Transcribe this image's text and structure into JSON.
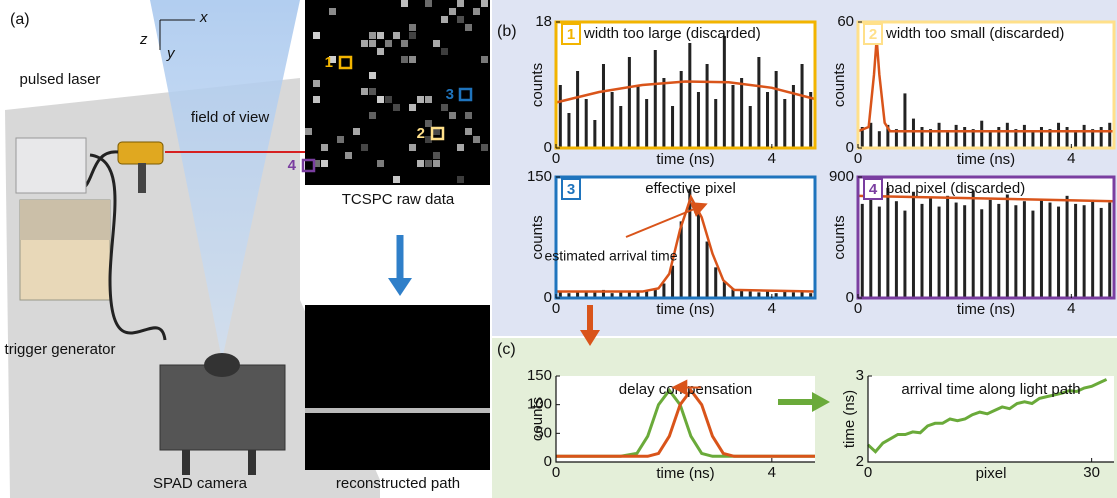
{
  "panel_a": {
    "label": "(a)",
    "axis_x": "x",
    "axis_y": "y",
    "axis_z": "z",
    "laser": "pulsed laser",
    "fov": "field of view",
    "trigger": "trigger generator",
    "camera": "SPAD camera",
    "raw": "TCSPC raw data",
    "path": "reconstructed path",
    "marker_1": "1",
    "marker_2": "2",
    "marker_3": "3",
    "marker_4": "4"
  },
  "panel_b_label": "(b)",
  "panel_c_label": "(c)",
  "chart_data": [
    {
      "type": "histogram",
      "badge": "1",
      "title": "width too large (discarded)",
      "frame_color": "#f2b400",
      "color": "#222222",
      "xlabel": "time (ns)",
      "ylabel": "counts",
      "xlim": [
        0,
        4.8
      ],
      "xticks": [
        0,
        4
      ],
      "ylim": [
        0,
        18
      ],
      "yticks": [
        0,
        18
      ],
      "x": [
        0.08,
        0.24,
        0.4,
        0.56,
        0.72,
        0.88,
        1.04,
        1.2,
        1.36,
        1.52,
        1.68,
        1.84,
        2.0,
        2.16,
        2.32,
        2.48,
        2.64,
        2.8,
        2.96,
        3.12,
        3.28,
        3.44,
        3.6,
        3.76,
        3.92,
        4.08,
        4.24,
        4.4,
        4.56,
        4.72
      ],
      "values": [
        9,
        5,
        11,
        7,
        4,
        12,
        8,
        6,
        13,
        9,
        7,
        14,
        10,
        6,
        11,
        15,
        8,
        12,
        7,
        16,
        9,
        10,
        6,
        13,
        8,
        11,
        7,
        9,
        12,
        8
      ],
      "fit": {
        "color": "#d9541a",
        "x": [
          0,
          0.8,
          1.6,
          2.4,
          3.2,
          4.0,
          4.8
        ],
        "values": [
          6.5,
          8.0,
          9.0,
          9.5,
          9.4,
          8.6,
          7.0
        ]
      }
    },
    {
      "type": "histogram",
      "badge": "2",
      "title": "width too small (discarded)",
      "frame_color": "#ffe08a",
      "color": "#222222",
      "xlabel": "time (ns)",
      "ylabel": "counts",
      "xlim": [
        0,
        4.8
      ],
      "xticks": [
        0,
        4
      ],
      "ylim": [
        0,
        60
      ],
      "yticks": [
        0,
        60
      ],
      "x": [
        0.08,
        0.24,
        0.4,
        0.56,
        0.72,
        0.88,
        1.04,
        1.2,
        1.36,
        1.52,
        1.68,
        1.84,
        2.0,
        2.16,
        2.32,
        2.48,
        2.64,
        2.8,
        2.96,
        3.12,
        3.28,
        3.44,
        3.6,
        3.76,
        3.92,
        4.08,
        4.24,
        4.4,
        4.56,
        4.72
      ],
      "values": [
        10,
        12,
        8,
        11,
        9,
        26,
        14,
        10,
        9,
        12,
        8,
        11,
        10,
        9,
        13,
        8,
        10,
        12,
        9,
        11,
        8,
        10,
        9,
        12,
        10,
        8,
        11,
        9,
        10,
        12
      ],
      "fit": {
        "color": "#d9541a",
        "x": [
          0,
          0.2,
          0.3,
          0.35,
          0.4,
          0.5,
          0.6,
          0.8,
          1.6,
          2.4,
          3.2,
          4.0,
          4.8
        ],
        "values": [
          8,
          10,
          35,
          52,
          35,
          12,
          8,
          8,
          8,
          8,
          8,
          8,
          8
        ]
      }
    },
    {
      "type": "histogram",
      "badge": "3",
      "title": "effective pixel",
      "annotation": "estimated arrival time",
      "frame_color": "#1f74bd",
      "color": "#222222",
      "xlabel": "time (ns)",
      "ylabel": "counts",
      "xlim": [
        0,
        4.8
      ],
      "xticks": [
        0,
        4
      ],
      "ylim": [
        0,
        150
      ],
      "yticks": [
        0,
        150
      ],
      "x": [
        0.08,
        0.24,
        0.4,
        0.56,
        0.72,
        0.88,
        1.04,
        1.2,
        1.36,
        1.52,
        1.68,
        1.84,
        2.0,
        2.16,
        2.32,
        2.48,
        2.64,
        2.8,
        2.96,
        3.12,
        3.28,
        3.44,
        3.6,
        3.76,
        3.92,
        4.08,
        4.24,
        4.4,
        4.56,
        4.72
      ],
      "values": [
        8,
        6,
        9,
        7,
        8,
        10,
        6,
        9,
        8,
        7,
        9,
        12,
        18,
        40,
        95,
        135,
        110,
        70,
        38,
        20,
        12,
        9,
        8,
        7,
        9,
        6,
        8,
        7,
        9,
        6
      ],
      "fit": {
        "color": "#d9541a",
        "x": [
          0,
          1.6,
          1.9,
          2.1,
          2.3,
          2.5,
          2.7,
          2.9,
          3.1,
          3.3,
          4.8
        ],
        "values": [
          8,
          8,
          12,
          30,
          85,
          125,
          100,
          55,
          22,
          10,
          8
        ]
      }
    },
    {
      "type": "histogram",
      "badge": "4",
      "title": "bad pixel (discarded)",
      "frame_color": "#7a3ea0",
      "color": "#222222",
      "xlabel": "time (ns)",
      "ylabel": "counts",
      "xlim": [
        0,
        4.8
      ],
      "xticks": [
        0,
        4
      ],
      "ylim": [
        0,
        900
      ],
      "yticks": [
        0,
        900
      ],
      "x": [
        0.08,
        0.24,
        0.4,
        0.56,
        0.72,
        0.88,
        1.04,
        1.2,
        1.36,
        1.52,
        1.68,
        1.84,
        2.0,
        2.16,
        2.32,
        2.48,
        2.64,
        2.8,
        2.96,
        3.12,
        3.28,
        3.44,
        3.6,
        3.76,
        3.92,
        4.08,
        4.24,
        4.4,
        4.56,
        4.72
      ],
      "values": [
        700,
        760,
        680,
        820,
        720,
        650,
        790,
        700,
        740,
        680,
        760,
        710,
        690,
        800,
        660,
        730,
        700,
        770,
        690,
        720,
        650,
        740,
        710,
        680,
        760,
        700,
        690,
        730,
        670,
        710
      ],
      "fit": {
        "color": "#d9541a",
        "x": [
          0,
          4.8
        ],
        "values": [
          760,
          720
        ]
      }
    },
    {
      "type": "line",
      "title": "delay compensation",
      "xlabel": "time (ns)",
      "ylabel": "counts",
      "xlim": [
        0,
        4.8
      ],
      "xticks": [
        0,
        4
      ],
      "ylim": [
        0,
        150
      ],
      "yticks": [
        0,
        50,
        100,
        150
      ],
      "x": [
        0,
        1.2,
        1.5,
        1.7,
        1.9,
        2.1,
        2.3,
        2.5,
        2.7,
        2.9,
        3.1,
        3.3,
        4.8
      ],
      "series": [
        {
          "color": "#6aaa3a",
          "values": [
            10,
            10,
            15,
            45,
            100,
            125,
            100,
            45,
            15,
            10,
            10,
            10,
            10
          ]
        },
        {
          "color": "#d9541a",
          "values": [
            10,
            10,
            10,
            10,
            15,
            45,
            100,
            125,
            100,
            45,
            15,
            10,
            10
          ]
        }
      ]
    },
    {
      "type": "line",
      "title": "arrival time along light path",
      "xlabel": "pixel",
      "ylabel": "time (ns)",
      "xlim": [
        0,
        33
      ],
      "xticks": [
        0,
        30
      ],
      "ylim": [
        2,
        3
      ],
      "yticks": [
        2,
        3
      ],
      "x": [
        0,
        1,
        2,
        3,
        4,
        5,
        6,
        7,
        8,
        9,
        10,
        11,
        12,
        13,
        14,
        15,
        16,
        17,
        18,
        19,
        20,
        21,
        22,
        23,
        24,
        25,
        26,
        27,
        28,
        29,
        30,
        31,
        32
      ],
      "series": [
        {
          "color": "#6aaa3a",
          "values": [
            2.2,
            2.12,
            2.22,
            2.27,
            2.32,
            2.32,
            2.35,
            2.34,
            2.42,
            2.45,
            2.45,
            2.5,
            2.48,
            2.5,
            2.55,
            2.58,
            2.56,
            2.6,
            2.64,
            2.62,
            2.68,
            2.7,
            2.68,
            2.74,
            2.76,
            2.78,
            2.8,
            2.83,
            2.82,
            2.86,
            2.88,
            2.92,
            2.96
          ]
        }
      ]
    }
  ]
}
